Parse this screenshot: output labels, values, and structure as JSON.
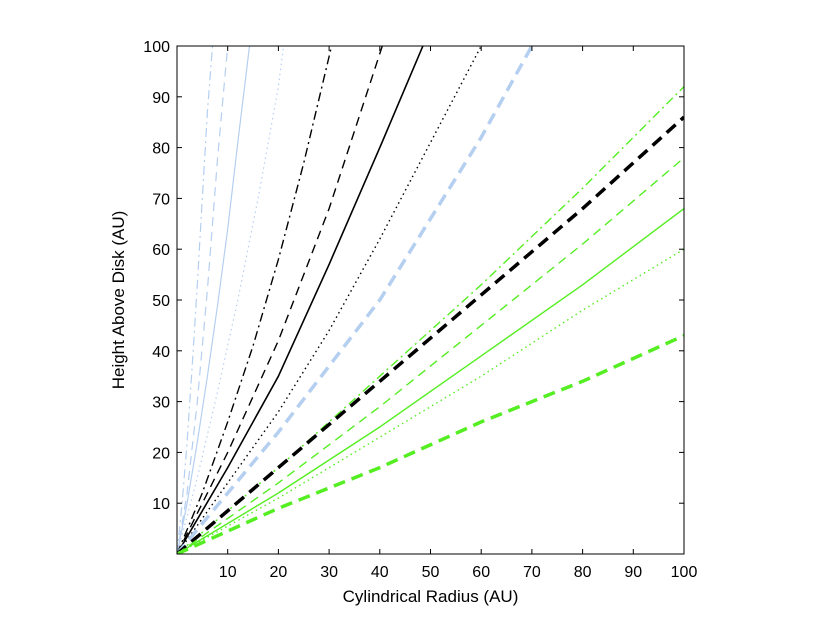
{
  "chart_data": {
    "type": "line",
    "title": "",
    "xlabel": "Cylindrical Radius (AU)",
    "ylabel": "Height Above Disk (AU)",
    "xlim": [
      0,
      100
    ],
    "ylim": [
      0,
      100
    ],
    "xticks": [
      10,
      20,
      30,
      40,
      50,
      60,
      70,
      80,
      90,
      100
    ],
    "yticks": [
      10,
      20,
      30,
      40,
      50,
      60,
      70,
      80,
      90,
      100
    ],
    "grid": false,
    "legend": "none",
    "colors": {
      "blue": "#b5cff0",
      "black": "#000000",
      "green": "#55ee22"
    },
    "series": [
      {
        "color": "blue",
        "style": "dashdot",
        "width": 1.2,
        "x": [
          0,
          1,
          2,
          3,
          4,
          5,
          6,
          7
        ],
        "y": [
          0,
          10,
          22,
          37,
          53,
          70,
          87,
          100
        ]
      },
      {
        "color": "blue",
        "style": "dashed",
        "width": 1.2,
        "x": [
          0,
          2,
          4,
          6,
          8,
          10
        ],
        "y": [
          0,
          12,
          30,
          52,
          78,
          100
        ]
      },
      {
        "color": "blue",
        "style": "solid",
        "width": 1.2,
        "x": [
          0,
          2,
          4,
          6,
          8,
          10,
          12,
          14.3
        ],
        "y": [
          0,
          10,
          22,
          35,
          49,
          64,
          81,
          100
        ]
      },
      {
        "color": "blue",
        "style": "dotted",
        "width": 1.2,
        "x": [
          0,
          4,
          8,
          12,
          16,
          20,
          21
        ],
        "y": [
          0,
          15,
          32,
          50,
          70,
          92,
          100
        ]
      },
      {
        "color": "black",
        "style": "dashdot",
        "width": 1.4,
        "x": [
          0,
          5,
          10,
          15,
          20,
          25,
          30.5
        ],
        "y": [
          0,
          12,
          26,
          41,
          58,
          77,
          100
        ]
      },
      {
        "color": "black",
        "style": "dashed",
        "width": 1.4,
        "x": [
          0,
          10,
          20,
          30,
          40.5
        ],
        "y": [
          0,
          20,
          42,
          68,
          100
        ]
      },
      {
        "color": "black",
        "style": "solid",
        "width": 1.6,
        "x": [
          0,
          10,
          20,
          30,
          40,
          48.5
        ],
        "y": [
          0,
          17,
          35,
          57,
          80,
          100
        ]
      },
      {
        "color": "black",
        "style": "dotted",
        "width": 1.4,
        "x": [
          0,
          10,
          20,
          30,
          40,
          50,
          60,
          59.5
        ],
        "y": [
          0,
          14,
          28,
          44,
          62,
          81,
          100,
          100
        ]
      },
      {
        "color": "blue",
        "style": "dashed",
        "width": 3.5,
        "x": [
          0,
          20,
          40,
          60,
          70
        ],
        "y": [
          0,
          24,
          50,
          82,
          100
        ]
      },
      {
        "color": "green",
        "style": "dashdot",
        "width": 1.4,
        "x": [
          0,
          20,
          40,
          60,
          80,
          100
        ],
        "y": [
          0,
          17,
          35,
          53,
          72,
          92
        ]
      },
      {
        "color": "black",
        "style": "dashed",
        "width": 3.5,
        "x": [
          0,
          20,
          40,
          60,
          80,
          100
        ],
        "y": [
          0,
          17,
          34,
          51,
          68,
          86
        ]
      },
      {
        "color": "green",
        "style": "dashed",
        "width": 1.4,
        "x": [
          0,
          20,
          40,
          60,
          80,
          100
        ],
        "y": [
          0,
          14,
          29,
          45,
          61,
          78
        ]
      },
      {
        "color": "green",
        "style": "solid",
        "width": 1.4,
        "x": [
          0,
          20,
          40,
          60,
          80,
          100
        ],
        "y": [
          0,
          12,
          25,
          39,
          53,
          68
        ]
      },
      {
        "color": "green",
        "style": "dotted",
        "width": 1.4,
        "x": [
          0,
          20,
          40,
          60,
          80,
          100
        ],
        "y": [
          0,
          11,
          23,
          35,
          48,
          60
        ]
      },
      {
        "color": "green",
        "style": "dashed",
        "width": 3.5,
        "x": [
          0,
          20,
          40,
          60,
          80,
          100
        ],
        "y": [
          0,
          9,
          17,
          26,
          34,
          43
        ]
      }
    ]
  }
}
